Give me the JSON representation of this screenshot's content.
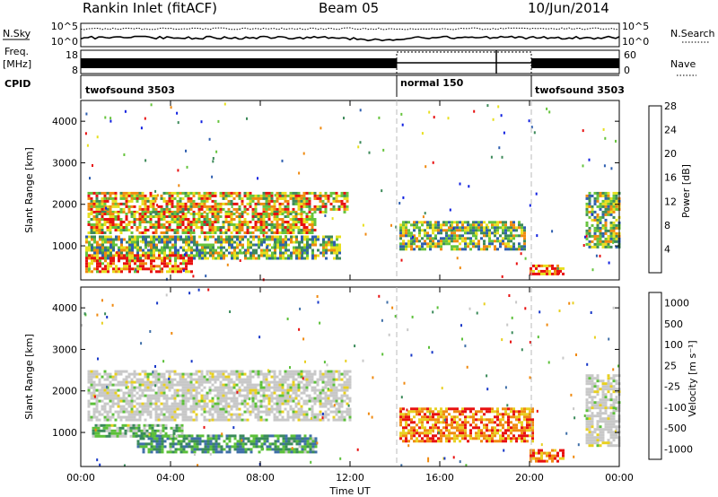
{
  "header": {
    "title": "Rankin Inlet (fitACF)",
    "beam": "Beam 05",
    "date": "10/Jun/2014"
  },
  "side_labels": {
    "nsky": "N.Sky",
    "freq_line1": "Freq.",
    "freq_line2": "[MHz]",
    "cpid": "CPID",
    "nsearch": "N.Search",
    "nave": "Nave"
  },
  "nsky_ticks": {
    "top": "10^5",
    "bottom": "10^0"
  },
  "freq_ticks": {
    "top": "18",
    "bottom": "8"
  },
  "nave_ticks": {
    "top": "60",
    "bottom": "0"
  },
  "cpid_segments": [
    {
      "label": "twofsound 3503",
      "start_h": 0,
      "end_h": 14
    },
    {
      "label": "normal 150",
      "start_h": 14,
      "end_h": 20
    },
    {
      "label": "twofsound 3503",
      "start_h": 20,
      "end_h": 24
    }
  ],
  "chart_data": [
    {
      "type": "heatmap",
      "panel": "power",
      "ylabel": "Slant Range [km]",
      "xlim": [
        0,
        24
      ],
      "ylim": [
        180,
        4500
      ],
      "yticks": [
        1000,
        2000,
        3000,
        4000
      ],
      "colorbar": {
        "label": "Power [dB]",
        "ticks": [
          "4",
          "8",
          "12",
          "16",
          "20",
          "24",
          "28"
        ],
        "colors": [
          "#1020e0",
          "#2f5fb0",
          "#3d8a5a",
          "#66c43c",
          "#e8e020",
          "#f08a10",
          "#e81010"
        ]
      },
      "regions": [
        {
          "t0": 0.3,
          "t1": 11.9,
          "r0": 1800,
          "r1": 2300,
          "level": "mid-high"
        },
        {
          "t0": 0.3,
          "t1": 10.5,
          "r0": 1300,
          "r1": 1800,
          "level": "mid-high"
        },
        {
          "t0": 0.2,
          "t1": 11.5,
          "r0": 700,
          "r1": 1250,
          "level": "mid"
        },
        {
          "t0": 0.2,
          "t1": 5.0,
          "r0": 400,
          "r1": 800,
          "level": "high"
        },
        {
          "t0": 14.2,
          "t1": 19.8,
          "r0": 900,
          "r1": 1600,
          "level": "mid"
        },
        {
          "t0": 20.0,
          "t1": 21.5,
          "r0": 300,
          "r1": 550,
          "level": "high"
        },
        {
          "t0": 22.5,
          "t1": 24.0,
          "r0": 1000,
          "r1": 2300,
          "level": "mid"
        }
      ]
    },
    {
      "type": "heatmap",
      "panel": "velocity",
      "ylabel": "Slant Range [km]",
      "xlabel": "Time UT",
      "xlim": [
        0,
        24
      ],
      "ylim": [
        180,
        4500
      ],
      "yticks": [
        1000,
        2000,
        3000,
        4000
      ],
      "xticks": [
        "00:00",
        "04:00",
        "08:00",
        "12:00",
        "16:00",
        "20:00",
        "00:00"
      ],
      "colorbar": {
        "label": "Velocity [m s⁻¹]",
        "ticks": [
          "1000",
          "500",
          "100",
          "25",
          "-25",
          "-100",
          "-500",
          "-1000"
        ],
        "colors": [
          "#1838c8",
          "#3f6fa8",
          "#3a8a5a",
          "#5cc03a",
          "#c8c8c8",
          "#e8d020",
          "#f08a10",
          "#e81010"
        ]
      },
      "regions": [
        {
          "t0": 0.3,
          "t1": 12.0,
          "r0": 1300,
          "r1": 2500,
          "level": "ground-scatter"
        },
        {
          "t0": 2.5,
          "t1": 10.5,
          "r0": 550,
          "r1": 950,
          "level": "positive"
        },
        {
          "t0": 0.5,
          "t1": 4.5,
          "r0": 900,
          "r1": 1200,
          "level": "positive-low"
        },
        {
          "t0": 14.2,
          "t1": 20.2,
          "r0": 800,
          "r1": 1600,
          "level": "negative"
        },
        {
          "t0": 20.0,
          "t1": 21.5,
          "r0": 300,
          "r1": 600,
          "level": "negative-low"
        },
        {
          "t0": 22.5,
          "t1": 24.0,
          "r0": 700,
          "r1": 2400,
          "level": "ground-scatter"
        }
      ]
    }
  ]
}
